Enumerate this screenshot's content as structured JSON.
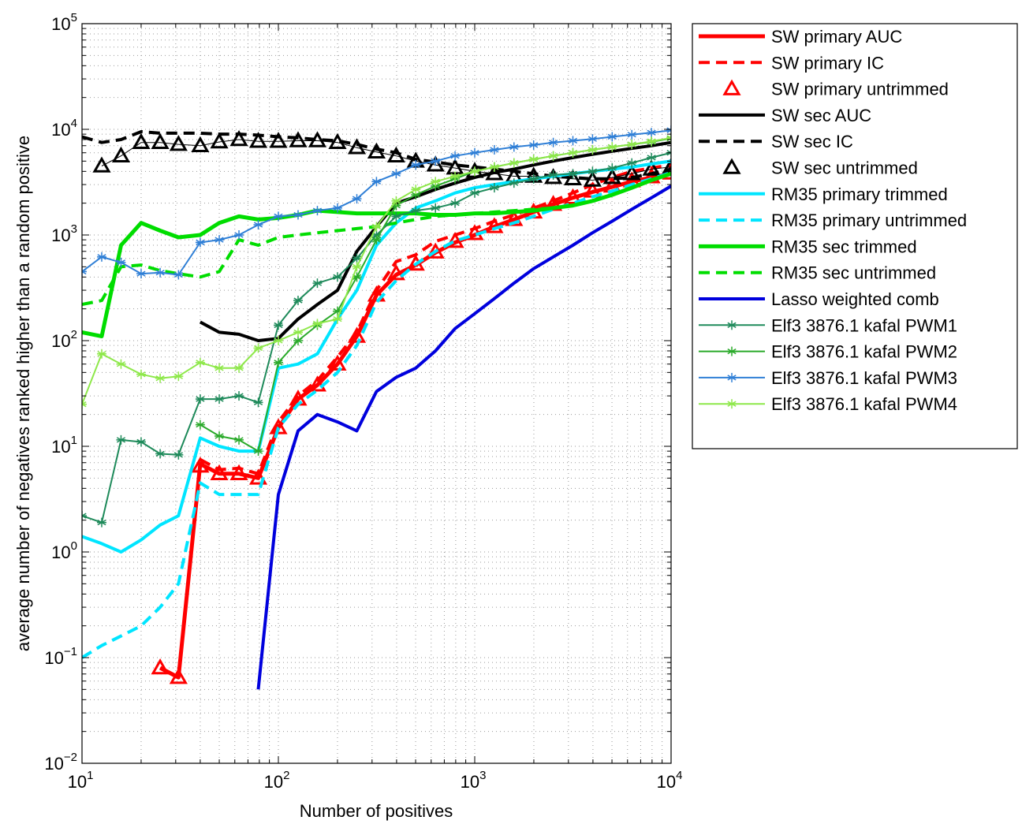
{
  "chart_data": {
    "type": "line",
    "title": "",
    "xlabel": "Number of positives",
    "ylabel": "average number of negatives ranked higher than a random positive",
    "xscale": "log",
    "yscale": "log",
    "xlim": [
      10,
      10000
    ],
    "ylim": [
      0.01,
      100000
    ],
    "grid": "dotted major and minor",
    "legend_position": "outside-right",
    "x_ticks": [
      {
        "base": "10",
        "exp": "1",
        "value": 10
      },
      {
        "base": "10",
        "exp": "2",
        "value": 100
      },
      {
        "base": "10",
        "exp": "3",
        "value": 1000
      },
      {
        "base": "10",
        "exp": "4",
        "value": 10000
      }
    ],
    "y_ticks": [
      {
        "base": "10",
        "exp": "−2",
        "value": 0.01
      },
      {
        "base": "10",
        "exp": "−1",
        "value": 0.1
      },
      {
        "base": "10",
        "exp": "0",
        "value": 1
      },
      {
        "base": "10",
        "exp": "1",
        "value": 10
      },
      {
        "base": "10",
        "exp": "2",
        "value": 100
      },
      {
        "base": "10",
        "exp": "3",
        "value": 1000
      },
      {
        "base": "10",
        "exp": "4",
        "value": 10000
      },
      {
        "base": "10",
        "exp": "5",
        "value": 100000
      }
    ],
    "series": [
      {
        "name": "SW primary AUC",
        "color": "#ff0000",
        "dash": "solid",
        "width": 5,
        "marker": "none",
        "x": [
          25,
          31,
          40,
          50,
          63,
          79,
          100,
          126,
          158,
          200,
          251,
          316,
          398,
          501,
          631,
          794,
          1000,
          1259,
          1585,
          1995,
          2512,
          3162,
          3981,
          5012,
          6310,
          7943,
          10000
        ],
        "y": [
          0.08,
          0.065,
          6.8,
          5.5,
          5.5,
          5,
          15,
          28,
          38,
          60,
          110,
          270,
          420,
          520,
          680,
          850,
          1000,
          1200,
          1400,
          1650,
          1950,
          2250,
          2550,
          2850,
          3200,
          3500,
          3800
        ]
      },
      {
        "name": "SW primary IC",
        "color": "#ff0000",
        "dash": "dashed",
        "width": 4,
        "marker": "none",
        "x": [
          40,
          50,
          63,
          79,
          100,
          126,
          158,
          200,
          251,
          316,
          398,
          501,
          631,
          794,
          1000,
          1259,
          1585,
          1995,
          2512,
          3162,
          3981,
          5012,
          6310,
          7943,
          10000
        ],
        "y": [
          7.5,
          6,
          6.2,
          5.5,
          17,
          30,
          42,
          70,
          120,
          300,
          560,
          650,
          870,
          1000,
          1150,
          1350,
          1550,
          1800,
          2100,
          2500,
          3000,
          3500,
          4000,
          4300,
          4600
        ]
      },
      {
        "name": "SW primary untrimmed",
        "color": "#ff0000",
        "dash": "none",
        "width": 3,
        "marker": "triangle",
        "x": [
          25,
          31,
          40,
          50,
          63,
          79,
          100,
          126,
          158,
          200,
          251,
          316,
          398,
          501,
          631,
          794,
          1000,
          1259,
          1585,
          1995,
          2512,
          3162,
          3981,
          5012,
          6310,
          7943,
          10000
        ],
        "y": [
          0.08,
          0.065,
          6.5,
          5.5,
          5.5,
          5,
          15,
          28,
          38,
          60,
          110,
          270,
          430,
          530,
          690,
          870,
          1030,
          1200,
          1400,
          1650,
          1950,
          2250,
          2600,
          2900,
          3250,
          3550,
          3850
        ]
      },
      {
        "name": "SW sec AUC",
        "color": "#000000",
        "dash": "solid",
        "width": 4,
        "marker": "none",
        "x": [
          40,
          50,
          63,
          79,
          100,
          126,
          158,
          200,
          251,
          316,
          398,
          501,
          631,
          794,
          1000,
          1259,
          1585,
          1995,
          2512,
          3162,
          3981,
          5012,
          6310,
          7943,
          10000
        ],
        "y": [
          150,
          120,
          115,
          100,
          105,
          160,
          220,
          300,
          700,
          1200,
          2000,
          2300,
          2700,
          3100,
          3500,
          3900,
          4200,
          4600,
          5000,
          5400,
          5800,
          6200,
          6600,
          7000,
          7500
        ]
      },
      {
        "name": "SW sec IC",
        "color": "#000000",
        "dash": "dashed",
        "width": 4,
        "marker": "none",
        "x": [
          10,
          12.6,
          15.8,
          20,
          25,
          31,
          40,
          50,
          63,
          79,
          100,
          126,
          158,
          200,
          251,
          316,
          398,
          501,
          631,
          794,
          1000,
          1259,
          1585,
          1995,
          2512,
          3162,
          3981,
          5012,
          6310,
          7943,
          10000
        ],
        "y": [
          8500,
          7500,
          8000,
          9500,
          9200,
          9200,
          9200,
          9000,
          9000,
          8800,
          8500,
          8300,
          8000,
          7800,
          7200,
          6500,
          6000,
          5200,
          4900,
          4600,
          4400,
          4200,
          4000,
          3800,
          3600,
          3500,
          3400,
          3400,
          3500,
          3800,
          4200
        ]
      },
      {
        "name": "SW sec untrimmed",
        "color": "#000000",
        "dash": "none",
        "width": 3,
        "marker": "triangle",
        "x": [
          12.6,
          15.8,
          20,
          25,
          31,
          40,
          50,
          63,
          79,
          100,
          126,
          158,
          200,
          251,
          316,
          398,
          501,
          631,
          794,
          1000,
          1259,
          1585,
          1995,
          2512,
          3162,
          3981,
          5012,
          6310,
          7943,
          10000
        ],
        "y": [
          4500,
          5600,
          7500,
          7500,
          7200,
          7000,
          7600,
          8000,
          7700,
          7700,
          7800,
          7800,
          7500,
          6700,
          6100,
          5600,
          5000,
          4600,
          4300,
          4000,
          3800,
          3600,
          3600,
          3500,
          3400,
          3300,
          3500,
          3800,
          4200,
          4400
        ]
      },
      {
        "name": "RM35 primary trimmed",
        "color": "#00e5ff",
        "dash": "solid",
        "width": 4,
        "marker": "none",
        "x": [
          10,
          12.6,
          15.8,
          20,
          25,
          31,
          40,
          50,
          63,
          79,
          100,
          126,
          158,
          200,
          251,
          316,
          398,
          501,
          631,
          794,
          1000,
          1259,
          1585,
          1995,
          2512,
          3162,
          3981,
          5012,
          6310,
          7943,
          10000
        ],
        "y": [
          1.4,
          1.2,
          1.0,
          1.3,
          1.8,
          2.2,
          12,
          10,
          9,
          9,
          55,
          60,
          75,
          160,
          300,
          800,
          1300,
          1800,
          2100,
          2500,
          2800,
          3000,
          3200,
          3400,
          3600,
          3800,
          4000,
          4200,
          4400,
          4700,
          5000
        ]
      },
      {
        "name": "RM35 primary untrimmed",
        "color": "#00e5ff",
        "dash": "dashed",
        "width": 4,
        "marker": "none",
        "x": [
          10,
          12.6,
          15.8,
          20,
          25,
          31,
          40,
          50,
          63,
          79,
          100,
          126,
          158,
          200,
          251,
          316,
          398,
          501,
          631,
          794,
          1000,
          1259,
          1585,
          1995,
          2512,
          3162,
          3981,
          5012,
          6310,
          7943,
          10000
        ],
        "y": [
          0.1,
          0.13,
          0.16,
          0.2,
          0.3,
          0.5,
          4.5,
          3.5,
          3.5,
          3.5,
          15,
          25,
          34,
          50,
          90,
          230,
          370,
          530,
          700,
          880,
          1000,
          1150,
          1300,
          1500,
          1750,
          2000,
          2300,
          2600,
          3000,
          3400,
          3900
        ]
      },
      {
        "name": "RM35 sec trimmed",
        "color": "#00dd00",
        "dash": "solid",
        "width": 5,
        "marker": "none",
        "x": [
          10,
          12.6,
          15.8,
          20,
          25,
          31,
          40,
          50,
          63,
          79,
          100,
          126,
          158,
          200,
          251,
          316,
          398,
          501,
          631,
          794,
          1000,
          1259,
          1585,
          1995,
          2512,
          3162,
          3981,
          5012,
          6310,
          7943,
          10000
        ],
        "y": [
          120,
          110,
          800,
          1300,
          1100,
          950,
          1000,
          1300,
          1500,
          1400,
          1450,
          1550,
          1700,
          1650,
          1600,
          1600,
          1600,
          1600,
          1550,
          1550,
          1600,
          1600,
          1650,
          1700,
          1800,
          1900,
          2100,
          2400,
          2800,
          3300,
          3800
        ]
      },
      {
        "name": "RM35 sec untrimmed",
        "color": "#00dd00",
        "dash": "dashed",
        "width": 4,
        "marker": "none",
        "x": [
          10,
          12.6,
          15.8,
          20,
          25,
          31,
          40,
          50,
          63,
          79,
          100,
          126,
          158,
          200,
          251,
          316,
          398,
          501,
          631,
          794,
          1000,
          1259,
          1585,
          1995,
          2512,
          3162,
          3981,
          5012,
          6310,
          7943,
          10000
        ],
        "y": [
          220,
          240,
          500,
          520,
          460,
          430,
          400,
          450,
          900,
          800,
          950,
          1000,
          1050,
          1100,
          1150,
          1200,
          1300,
          1400,
          1500,
          1550,
          1600,
          1650,
          1700,
          1750,
          1800,
          1900,
          2100,
          2400,
          2800,
          3300,
          3800
        ]
      },
      {
        "name": "Lasso weighted comb",
        "color": "#0000dd",
        "dash": "solid",
        "width": 4,
        "marker": "none",
        "x": [
          79,
          100,
          126,
          158,
          200,
          251,
          316,
          398,
          501,
          631,
          794,
          1000,
          1259,
          1585,
          1995,
          2512,
          3162,
          3981,
          5012,
          6310,
          7943,
          10000
        ],
        "y": [
          0.05,
          3.5,
          14,
          20,
          17,
          14,
          33,
          45,
          55,
          80,
          130,
          180,
          250,
          350,
          480,
          620,
          800,
          1050,
          1350,
          1750,
          2250,
          2900
        ]
      },
      {
        "name": "Elf3  3876.1 kafal PWM1",
        "color": "#1e8a5a",
        "dash": "solid",
        "width": 2,
        "marker": "asterisk",
        "x": [
          10,
          12.6,
          15.8,
          20,
          25,
          31,
          40,
          50,
          63,
          79,
          100,
          126,
          158,
          200,
          251,
          316,
          398,
          501,
          631,
          794,
          1000,
          1259,
          1585,
          1995,
          2512,
          3162,
          3981,
          5012,
          6310,
          7943,
          10000
        ],
        "y": [
          2.2,
          1.9,
          11.5,
          11,
          8.5,
          8.3,
          28,
          28,
          30,
          26,
          140,
          240,
          350,
          400,
          600,
          1000,
          1500,
          1700,
          1800,
          2000,
          2500,
          2800,
          3100,
          3400,
          3700,
          3800,
          4000,
          4300,
          4800,
          5400,
          6000
        ]
      },
      {
        "name": "Elf3  3876.1 kafal PWM2",
        "color": "#2aaa2a",
        "dash": "solid",
        "width": 2,
        "marker": "asterisk",
        "x": [
          40,
          50,
          63,
          79,
          100,
          126,
          158,
          200,
          251,
          316,
          398,
          501,
          631,
          794,
          1000,
          1259,
          1585,
          1995,
          2512,
          3162,
          3981,
          5012,
          6310,
          7943,
          10000
        ],
        "y": [
          16,
          12.5,
          11.5,
          9,
          62,
          100,
          140,
          190,
          400,
          900,
          1900,
          2400,
          2900,
          3400,
          4000,
          4400,
          4800,
          5200,
          5600,
          6000,
          6400,
          6800,
          7200,
          7600,
          8200
        ]
      },
      {
        "name": "Elf3  3876.1 kafal PWM3",
        "color": "#2f7fd6",
        "dash": "solid",
        "width": 2,
        "marker": "asterisk",
        "x": [
          10,
          12.6,
          15.8,
          20,
          25,
          31,
          40,
          50,
          63,
          79,
          100,
          126,
          158,
          200,
          251,
          316,
          398,
          501,
          631,
          794,
          1000,
          1259,
          1585,
          1995,
          2512,
          3162,
          3981,
          5012,
          6310,
          7943,
          10000
        ],
        "y": [
          450,
          620,
          550,
          430,
          440,
          420,
          850,
          900,
          1000,
          1250,
          1500,
          1550,
          1700,
          1800,
          2200,
          3200,
          3800,
          4600,
          5000,
          5600,
          6000,
          6400,
          6800,
          7100,
          7500,
          7800,
          8100,
          8500,
          8900,
          9300,
          9800
        ]
      },
      {
        "name": "Elf3  3876.1 kafal PWM4",
        "color": "#8ee84a",
        "dash": "solid",
        "width": 2,
        "marker": "asterisk",
        "x": [
          10,
          12.6,
          15.8,
          20,
          25,
          31,
          40,
          50,
          63,
          79,
          100,
          126,
          158,
          200,
          251,
          316,
          398,
          501,
          631,
          794,
          1000,
          1259,
          1585,
          1995,
          2512,
          3162,
          3981,
          5012,
          6310,
          7943,
          10000
        ],
        "y": [
          25,
          75,
          60,
          48,
          44,
          46,
          62,
          55,
          55,
          85,
          100,
          120,
          145,
          160,
          500,
          1200,
          2100,
          2700,
          3200,
          3600,
          4000,
          4400,
          4800,
          5200,
          5600,
          6000,
          6400,
          6800,
          7200,
          7700,
          8300
        ]
      }
    ]
  }
}
